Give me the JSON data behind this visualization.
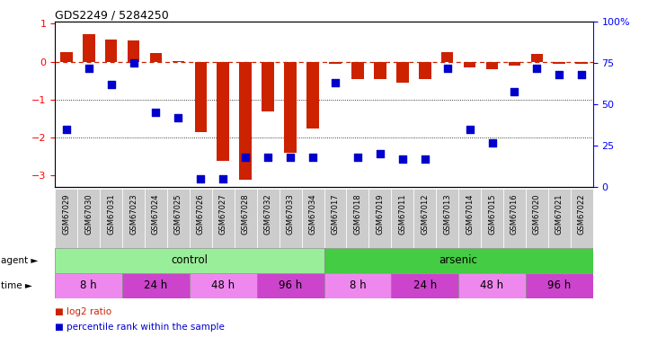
{
  "title": "GDS2249 / 5284250",
  "samples": [
    "GSM67029",
    "GSM67030",
    "GSM67031",
    "GSM67023",
    "GSM67024",
    "GSM67025",
    "GSM67026",
    "GSM67027",
    "GSM67028",
    "GSM67032",
    "GSM67033",
    "GSM67034",
    "GSM67017",
    "GSM67018",
    "GSM67019",
    "GSM67011",
    "GSM67012",
    "GSM67013",
    "GSM67014",
    "GSM67015",
    "GSM67016",
    "GSM67020",
    "GSM67021",
    "GSM67022"
  ],
  "log2_ratio": [
    0.25,
    0.72,
    0.58,
    0.55,
    0.22,
    0.02,
    -1.85,
    -2.6,
    -3.1,
    -1.3,
    -2.4,
    -1.75,
    -0.05,
    -0.45,
    -0.45,
    -0.55,
    -0.45,
    0.25,
    -0.15,
    -0.2,
    -0.1,
    0.2,
    -0.05,
    -0.05
  ],
  "percentile": [
    35,
    72,
    62,
    75,
    45,
    42,
    5,
    5,
    18,
    18,
    18,
    18,
    63,
    18,
    20,
    17,
    17,
    72,
    35,
    27,
    58,
    72,
    68,
    68
  ],
  "bar_color": "#cc2200",
  "dot_color": "#0000cc",
  "zero_line_color": "#cc2200",
  "agent_groups": [
    {
      "label": "control",
      "start": 0,
      "end": 12,
      "color": "#99ee99"
    },
    {
      "label": "arsenic",
      "start": 12,
      "end": 24,
      "color": "#44cc44"
    }
  ],
  "time_groups": [
    {
      "label": "8 h",
      "start": 0,
      "end": 3,
      "color": "#ee88ee"
    },
    {
      "label": "24 h",
      "start": 3,
      "end": 6,
      "color": "#cc44cc"
    },
    {
      "label": "48 h",
      "start": 6,
      "end": 9,
      "color": "#ee88ee"
    },
    {
      "label": "96 h",
      "start": 9,
      "end": 12,
      "color": "#cc44cc"
    },
    {
      "label": "8 h",
      "start": 12,
      "end": 15,
      "color": "#ee88ee"
    },
    {
      "label": "24 h",
      "start": 15,
      "end": 18,
      "color": "#cc44cc"
    },
    {
      "label": "48 h",
      "start": 18,
      "end": 21,
      "color": "#ee88ee"
    },
    {
      "label": "96 h",
      "start": 21,
      "end": 24,
      "color": "#cc44cc"
    }
  ],
  "ylim": [
    -3.3,
    1.05
  ],
  "yticks_left": [
    1,
    0,
    -1,
    -2,
    -3
  ],
  "yticks_right": [
    100,
    75,
    50,
    25,
    0
  ],
  "bar_width": 0.55,
  "dot_size": 28,
  "label_fontsize": 6.0,
  "agent_fontsize": 8.5,
  "time_fontsize": 8.5,
  "legend_fontsize": 7.5,
  "title_fontsize": 9
}
